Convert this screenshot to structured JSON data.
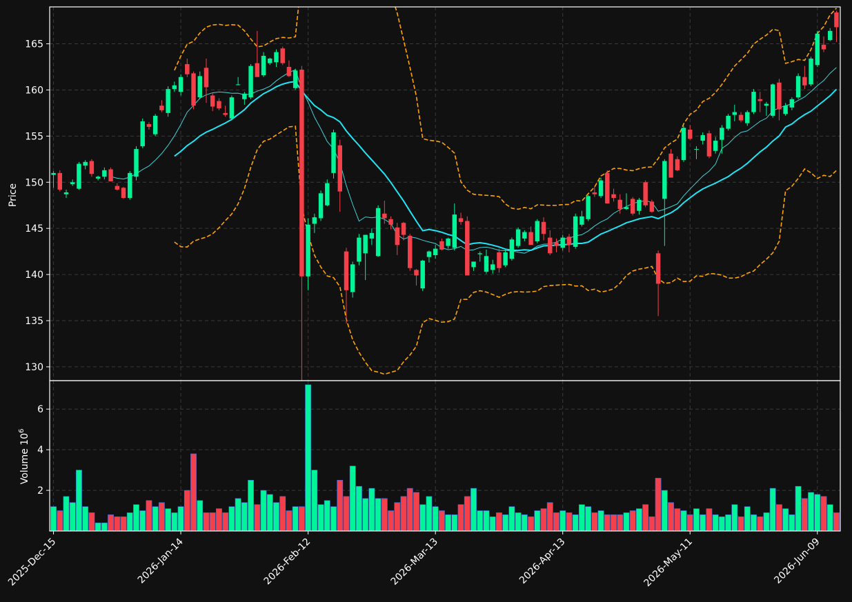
{
  "colors": {
    "background": "#111111",
    "axes_edge": "#ffffff",
    "grid": "#3a3a3a",
    "up": "#00f598",
    "down": "#f4404a",
    "ma_fast": "#3fd3d6",
    "ma_slow": "#1fe5f5",
    "bollinger": "#ffa500"
  },
  "chart_data": {
    "type": "candlestick",
    "title": "",
    "price_axis": {
      "ylabel": "Price",
      "ylim": [
        128.5,
        169
      ],
      "ticks": [
        130,
        135,
        140,
        145,
        150,
        155,
        160,
        165
      ]
    },
    "volume_axis": {
      "ylabel": "Volume",
      "unit_exponent": "6",
      "ylim": [
        0,
        7.4
      ],
      "ticks": [
        2,
        4,
        6
      ],
      "ticklabels": [
        "2",
        "4",
        "6"
      ]
    },
    "x_axis": {
      "ticks": [
        0,
        20,
        40,
        60,
        80,
        100,
        120
      ],
      "ticklabels": [
        "2025-Dec-15",
        "2026-Jan-14",
        "2026-Feb-12",
        "2026-Mar-13",
        "2026-Apr-13",
        "2026-May-11",
        "2026-Jun-09"
      ],
      "xlim": [
        -0.6,
        123.6
      ]
    },
    "grid": true,
    "moving_averages": [
      {
        "color": "ma_fast",
        "window": 10
      },
      {
        "color": "ma_slow",
        "window": 20
      }
    ],
    "bollinger_bands": {
      "color": "bollinger",
      "window": 20,
      "num_std": 2.5
    },
    "ohlc": [
      [
        150.8,
        151.2,
        149.4,
        151.0,
        1.2
      ],
      [
        151.0,
        151.3,
        149.0,
        149.2,
        1.0
      ],
      [
        148.7,
        149.2,
        148.3,
        148.9,
        1.7
      ],
      [
        149.8,
        150.3,
        149.6,
        150.0,
        1.4
      ],
      [
        149.3,
        152.2,
        149.2,
        152.0,
        3.0
      ],
      [
        151.8,
        152.4,
        151.4,
        152.2,
        1.2
      ],
      [
        152.3,
        152.5,
        150.6,
        150.9,
        0.9
      ],
      [
        150.4,
        150.7,
        150.2,
        150.6,
        0.4
      ],
      [
        150.6,
        151.6,
        150.3,
        151.3,
        0.4
      ],
      [
        151.4,
        151.6,
        150.2,
        150.1,
        0.8
      ],
      [
        149.6,
        149.9,
        149.1,
        149.2,
        0.7
      ],
      [
        149.4,
        149.5,
        148.2,
        148.3,
        0.7
      ],
      [
        148.3,
        151.2,
        148.1,
        151.0,
        0.9
      ],
      [
        150.6,
        153.9,
        150.2,
        153.6,
        1.3
      ],
      [
        153.9,
        156.9,
        153.7,
        156.6,
        1.0
      ],
      [
        156.3,
        156.5,
        155.7,
        156.0,
        1.5
      ],
      [
        155.2,
        157.4,
        155.0,
        157.2,
        1.2
      ],
      [
        158.3,
        158.9,
        157.6,
        157.8,
        1.4
      ],
      [
        157.5,
        160.4,
        157.1,
        160.1,
        1.1
      ],
      [
        160.1,
        160.9,
        159.8,
        160.5,
        0.9
      ],
      [
        159.8,
        161.7,
        159.4,
        161.4,
        1.2
      ],
      [
        162.8,
        163.4,
        161.4,
        161.7,
        2.0
      ],
      [
        161.8,
        162.0,
        157.9,
        158.3,
        3.8
      ],
      [
        159.2,
        162.0,
        159.0,
        161.5,
        1.5
      ],
      [
        162.4,
        163.4,
        158.6,
        160.3,
        0.9
      ],
      [
        159.4,
        159.7,
        157.7,
        158.2,
        0.9
      ],
      [
        158.8,
        159.1,
        157.8,
        158.0,
        1.1
      ],
      [
        157.5,
        158.3,
        157.1,
        157.3,
        0.9
      ],
      [
        156.9,
        159.4,
        156.7,
        159.2,
        1.2
      ],
      [
        160.6,
        161.4,
        160.5,
        160.6,
        1.6
      ],
      [
        159.0,
        159.8,
        158.4,
        159.6,
        1.4
      ],
      [
        159.2,
        162.8,
        159.0,
        162.6,
        2.5
      ],
      [
        162.9,
        166.4,
        161.8,
        161.4,
        1.3
      ],
      [
        161.6,
        164.1,
        161.4,
        163.7,
        2.0
      ],
      [
        162.9,
        163.5,
        162.7,
        163.4,
        1.8
      ],
      [
        163.0,
        164.4,
        162.5,
        164.1,
        1.4
      ],
      [
        164.5,
        164.7,
        162.7,
        162.9,
        1.7
      ],
      [
        162.5,
        163.2,
        161.4,
        161.5,
        1.0
      ],
      [
        160.2,
        162.3,
        160.0,
        162.1,
        1.2
      ],
      [
        162.2,
        162.6,
        128.5,
        139.8,
        1.2
      ],
      [
        139.8,
        146.1,
        138.3,
        145.4,
        7.2
      ],
      [
        145.5,
        146.6,
        144.5,
        146.2,
        3.0
      ],
      [
        146.1,
        149.1,
        145.8,
        148.8,
        1.3
      ],
      [
        147.5,
        150.3,
        147.4,
        149.9,
        1.5
      ],
      [
        151.0,
        155.7,
        150.4,
        155.4,
        1.2
      ],
      [
        154.0,
        154.6,
        146.8,
        149.0,
        2.5
      ],
      [
        142.5,
        142.9,
        134.7,
        138.3,
        1.7
      ],
      [
        138.1,
        141.4,
        137.5,
        141.1,
        3.2
      ],
      [
        141.4,
        144.4,
        141.0,
        144.0,
        2.2
      ],
      [
        142.3,
        144.3,
        139.4,
        144.3,
        1.6
      ],
      [
        143.9,
        145.0,
        143.2,
        144.5,
        2.1
      ],
      [
        142.0,
        147.5,
        141.9,
        147.2,
        1.6
      ],
      [
        146.6,
        148.0,
        145.5,
        146.1,
        1.6
      ],
      [
        146.0,
        146.3,
        144.9,
        145.4,
        1.0
      ],
      [
        145.1,
        145.6,
        142.1,
        143.2,
        1.4
      ],
      [
        145.6,
        145.7,
        143.7,
        144.3,
        1.7
      ],
      [
        144.2,
        144.4,
        140.4,
        140.7,
        2.1
      ],
      [
        140.5,
        140.6,
        138.8,
        139.9,
        1.9
      ],
      [
        138.5,
        141.6,
        138.2,
        141.5,
        1.3
      ],
      [
        141.9,
        142.6,
        141.3,
        142.5,
        1.7
      ],
      [
        142.1,
        143.2,
        141.7,
        142.8,
        1.2
      ],
      [
        143.6,
        143.9,
        142.6,
        142.7,
        1.0
      ],
      [
        143.1,
        144.0,
        142.8,
        143.9,
        0.8
      ],
      [
        142.9,
        147.7,
        142.6,
        146.5,
        0.8
      ],
      [
        146.1,
        146.7,
        145.4,
        145.7,
        1.3
      ],
      [
        145.8,
        146.3,
        140.0,
        139.9,
        1.7
      ],
      [
        140.8,
        141.3,
        140.4,
        141.4,
        2.1
      ],
      [
        142.2,
        142.5,
        141.4,
        142.3,
        1.0
      ],
      [
        140.3,
        142.7,
        140.1,
        142.0,
        1.0
      ],
      [
        140.5,
        141.6,
        140.1,
        141.1,
        0.7
      ],
      [
        142.4,
        142.8,
        140.2,
        140.7,
        0.9
      ],
      [
        141.0,
        142.7,
        140.8,
        142.4,
        0.8
      ],
      [
        141.7,
        144.0,
        141.5,
        143.8,
        1.2
      ],
      [
        143.1,
        145.1,
        142.9,
        144.9,
        0.9
      ],
      [
        143.9,
        144.8,
        143.6,
        144.6,
        0.8
      ],
      [
        144.6,
        145.2,
        143.3,
        143.2,
        0.7
      ],
      [
        143.6,
        146.0,
        143.4,
        145.8,
        1.0
      ],
      [
        145.7,
        146.2,
        143.7,
        144.4,
        1.1
      ],
      [
        144.0,
        144.8,
        142.1,
        142.3,
        1.4
      ],
      [
        143.5,
        143.9,
        142.4,
        143.1,
        0.9
      ],
      [
        142.9,
        144.3,
        142.6,
        144.0,
        1.0
      ],
      [
        144.1,
        144.4,
        142.4,
        143.2,
        0.9
      ],
      [
        143.0,
        146.6,
        142.8,
        146.3,
        0.8
      ],
      [
        145.4,
        146.9,
        145.2,
        146.3,
        1.3
      ],
      [
        146.0,
        148.6,
        145.8,
        148.5,
        1.2
      ],
      [
        148.9,
        149.5,
        148.4,
        148.7,
        0.9
      ],
      [
        148.5,
        150.5,
        148.3,
        150.2,
        1.0
      ],
      [
        151.0,
        151.3,
        147.8,
        147.7,
        0.8
      ],
      [
        148.7,
        149.3,
        147.9,
        148.3,
        0.8
      ],
      [
        148.1,
        148.7,
        146.6,
        147.1,
        0.8
      ],
      [
        147.1,
        148.8,
        147.0,
        147.3,
        0.9
      ],
      [
        148.2,
        148.4,
        146.4,
        146.6,
        1.0
      ],
      [
        146.9,
        148.3,
        146.5,
        148.1,
        1.1
      ],
      [
        150.0,
        150.2,
        147.3,
        147.5,
        1.3
      ],
      [
        147.9,
        148.1,
        146.7,
        146.8,
        0.7
      ],
      [
        142.3,
        142.6,
        135.5,
        139.0,
        2.6
      ],
      [
        148.2,
        152.5,
        143.1,
        152.3,
        2.0
      ],
      [
        153.1,
        153.6,
        150.5,
        150.5,
        1.4
      ],
      [
        152.5,
        152.8,
        151.2,
        151.3,
        1.1
      ],
      [
        152.4,
        156.1,
        152.2,
        155.9,
        1.0
      ],
      [
        155.7,
        156.2,
        154.6,
        154.7,
        0.8
      ],
      [
        153.6,
        153.9,
        152.5,
        153.6,
        1.1
      ],
      [
        154.5,
        155.4,
        154.1,
        155.1,
        0.8
      ],
      [
        155.3,
        155.6,
        152.6,
        152.8,
        1.1
      ],
      [
        153.4,
        154.9,
        153.1,
        154.5,
        0.8
      ],
      [
        154.6,
        156.2,
        153.1,
        155.9,
        0.7
      ],
      [
        155.8,
        157.4,
        155.6,
        157.2,
        0.8
      ],
      [
        157.3,
        158.4,
        156.6,
        157.6,
        1.3
      ],
      [
        157.3,
        157.6,
        156.5,
        156.7,
        0.7
      ],
      [
        156.4,
        157.8,
        156.1,
        157.6,
        1.2
      ],
      [
        157.6,
        160.1,
        157.4,
        159.8,
        0.8
      ],
      [
        159.0,
        159.8,
        157.6,
        158.8,
        0.7
      ],
      [
        158.3,
        158.7,
        157.2,
        158.5,
        0.9
      ],
      [
        157.2,
        160.7,
        157.0,
        160.6,
        2.1
      ],
      [
        160.8,
        161.2,
        156.7,
        157.9,
        1.3
      ],
      [
        157.4,
        158.6,
        157.2,
        158.3,
        1.1
      ],
      [
        158.1,
        159.2,
        157.8,
        159.0,
        0.8
      ],
      [
        159.2,
        161.8,
        159.0,
        161.5,
        2.2
      ],
      [
        161.4,
        162.6,
        160.1,
        160.5,
        1.6
      ],
      [
        160.6,
        163.6,
        160.4,
        163.4,
        1.9
      ],
      [
        162.7,
        166.4,
        162.5,
        166.1,
        1.8
      ],
      [
        164.9,
        165.8,
        164.1,
        164.4,
        1.7
      ],
      [
        165.4,
        166.7,
        165.3,
        166.4,
        1.3
      ],
      [
        168.4,
        168.6,
        165.2,
        166.8,
        0.9
      ]
    ]
  }
}
